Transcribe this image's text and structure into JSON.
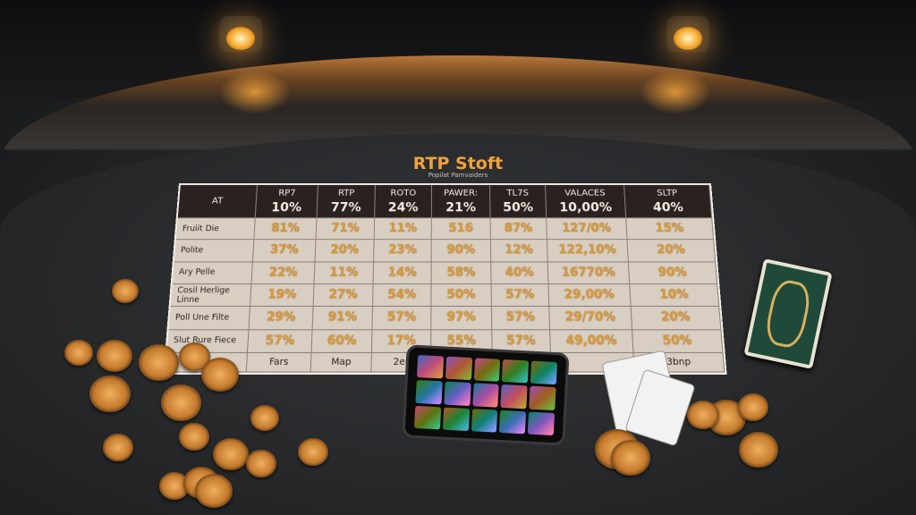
{
  "sheet": {
    "title": "RTP Stoft",
    "subtitle": "Popilat Pamvaiders",
    "header": [
      {
        "label": "AT",
        "value": ""
      },
      {
        "label": "RP7",
        "value": "10%"
      },
      {
        "label": "RTP",
        "value": "77%"
      },
      {
        "label": "ROTO",
        "value": "24%"
      },
      {
        "label": "PAWER:",
        "value": "21%"
      },
      {
        "label": "TL7S",
        "value": "50%"
      },
      {
        "label": "VALACES",
        "value": "10,00%"
      },
      {
        "label": "SLTP",
        "value": "40%"
      }
    ],
    "rows": [
      [
        "Fruiit Die",
        "81%",
        "71%",
        "11%",
        "516",
        "87%",
        "127/0%",
        "15%"
      ],
      [
        "Polite",
        "37%",
        "20%",
        "23%",
        "90%",
        "12%",
        "122,10%",
        "20%"
      ],
      [
        "Ary Pelle",
        "22%",
        "11%",
        "14%",
        "58%",
        "40%",
        "16770%",
        "90%"
      ],
      [
        "Cosil Herlige Linne",
        "19%",
        "27%",
        "54%",
        "50%",
        "57%",
        "29,00%",
        "10%"
      ],
      [
        "Poll Une Filte",
        "29%",
        "91%",
        "57%",
        "97%",
        "57%",
        "29/70%",
        "20%"
      ],
      [
        "Slut Rure Fiece",
        "57%",
        "60%",
        "17%",
        "55%",
        "57%",
        "49,00%",
        "50%"
      ]
    ],
    "footer": [
      "",
      "Fars",
      "Map",
      "2er",
      "",
      "",
      "",
      "3bnp"
    ]
  },
  "colors": {
    "accent": "#f0a23a",
    "felt": "#2a2c2e",
    "rail": "#b8773a"
  }
}
